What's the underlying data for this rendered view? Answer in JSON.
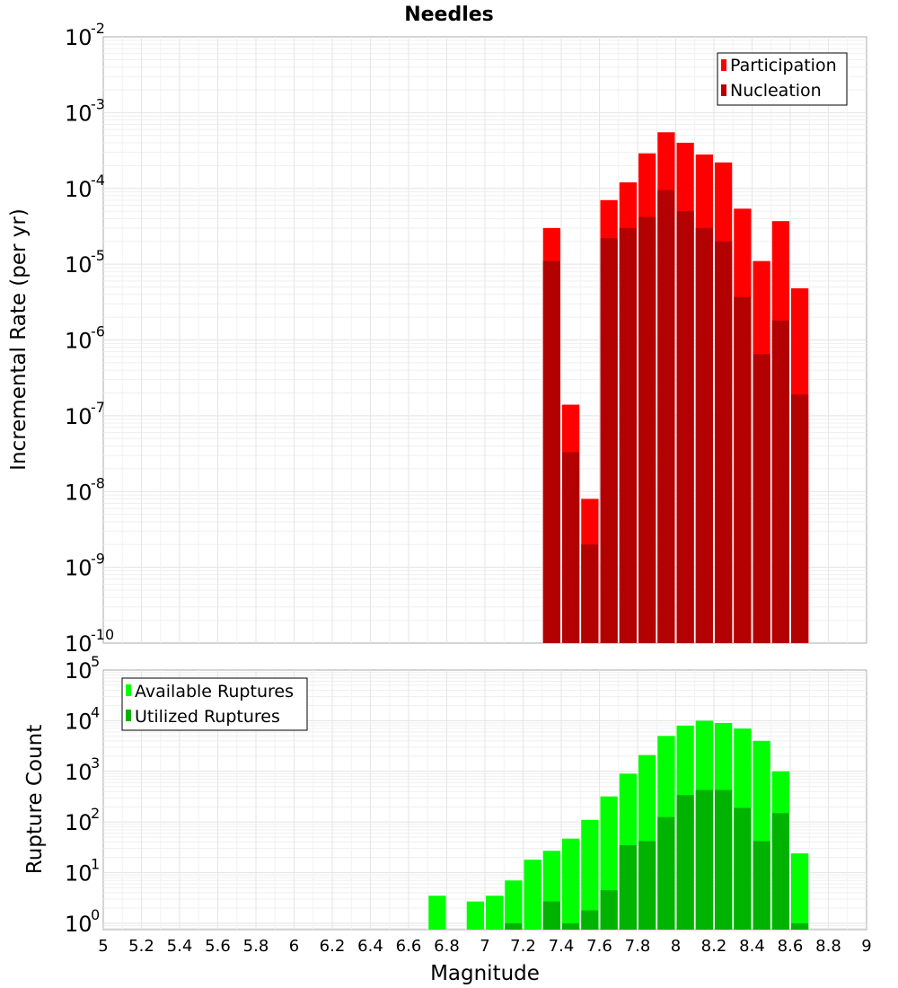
{
  "title": "Needles",
  "chart_data": [
    {
      "type": "bar",
      "ylabel": "Incremental Rate (per yr)",
      "yscale": "log",
      "ylim": [
        1e-10,
        0.01
      ],
      "y_tick_exponents": [
        -10,
        -9,
        -8,
        -7,
        -6,
        -5,
        -4,
        -3,
        -2
      ],
      "xlim": [
        5,
        9
      ],
      "bar_width": 0.1,
      "grid": true,
      "legend_position": "top-right",
      "series": [
        {
          "name": "Participation",
          "color": "#ff0000",
          "x": [
            7.35,
            7.45,
            7.55,
            7.65,
            7.75,
            7.85,
            7.95,
            8.05,
            8.15,
            8.25,
            8.35,
            8.45,
            8.55,
            8.65
          ],
          "values": [
            3e-05,
            1.4e-07,
            8e-09,
            7e-05,
            0.00012,
            0.00029,
            0.00055,
            0.0004,
            0.00028,
            0.00022,
            5.4e-05,
            1.1e-05,
            3.7e-05,
            4.8e-06
          ]
        },
        {
          "name": "Nucleation",
          "color": "#b30000",
          "x": [
            7.35,
            7.45,
            7.55,
            7.65,
            7.75,
            7.85,
            7.95,
            8.05,
            8.15,
            8.25,
            8.35,
            8.45,
            8.55,
            8.65
          ],
          "values": [
            1.1e-05,
            3.3e-08,
            2e-09,
            2.2e-05,
            3e-05,
            4.2e-05,
            9.5e-05,
            5e-05,
            3e-05,
            2e-05,
            3.7e-06,
            6.5e-07,
            1.8e-06,
            1.9e-07
          ]
        }
      ]
    },
    {
      "type": "bar",
      "xlabel": "Magnitude",
      "ylabel": "Rupture Count",
      "yscale": "log",
      "ylim": [
        0.75,
        100000
      ],
      "y_tick_exponents": [
        0,
        1,
        2,
        3,
        4,
        5
      ],
      "xlim": [
        5,
        9
      ],
      "x_ticks": [
        "5",
        "5.2",
        "5.4",
        "5.6",
        "5.8",
        "6",
        "6.2",
        "6.4",
        "6.6",
        "6.8",
        "7",
        "7.2",
        "7.4",
        "7.6",
        "7.8",
        "8",
        "8.2",
        "8.4",
        "8.6",
        "8.8",
        "9"
      ],
      "bar_width": 0.1,
      "grid": true,
      "legend_position": "top-left",
      "series": [
        {
          "name": "Available Ruptures",
          "color": "#00ff00",
          "x": [
            6.75,
            6.95,
            7.05,
            7.15,
            7.25,
            7.35,
            7.45,
            7.55,
            7.65,
            7.75,
            7.85,
            7.95,
            8.05,
            8.15,
            8.25,
            8.35,
            8.45,
            8.55,
            8.65
          ],
          "values": [
            3.5,
            2.7,
            3.5,
            7,
            18,
            27,
            47,
            110,
            320,
            900,
            2100,
            5000,
            8000,
            10000,
            9000,
            7000,
            4000,
            1000,
            24
          ]
        },
        {
          "name": "Utilized Ruptures",
          "color": "#00b300",
          "x": [
            7.15,
            7.35,
            7.45,
            7.55,
            7.65,
            7.75,
            7.85,
            7.95,
            8.05,
            8.15,
            8.25,
            8.35,
            8.45,
            8.55,
            8.65
          ],
          "values": [
            1,
            2.7,
            1,
            1.8,
            4.5,
            35,
            42,
            125,
            340,
            430,
            430,
            190,
            42,
            150,
            1
          ]
        }
      ]
    }
  ]
}
